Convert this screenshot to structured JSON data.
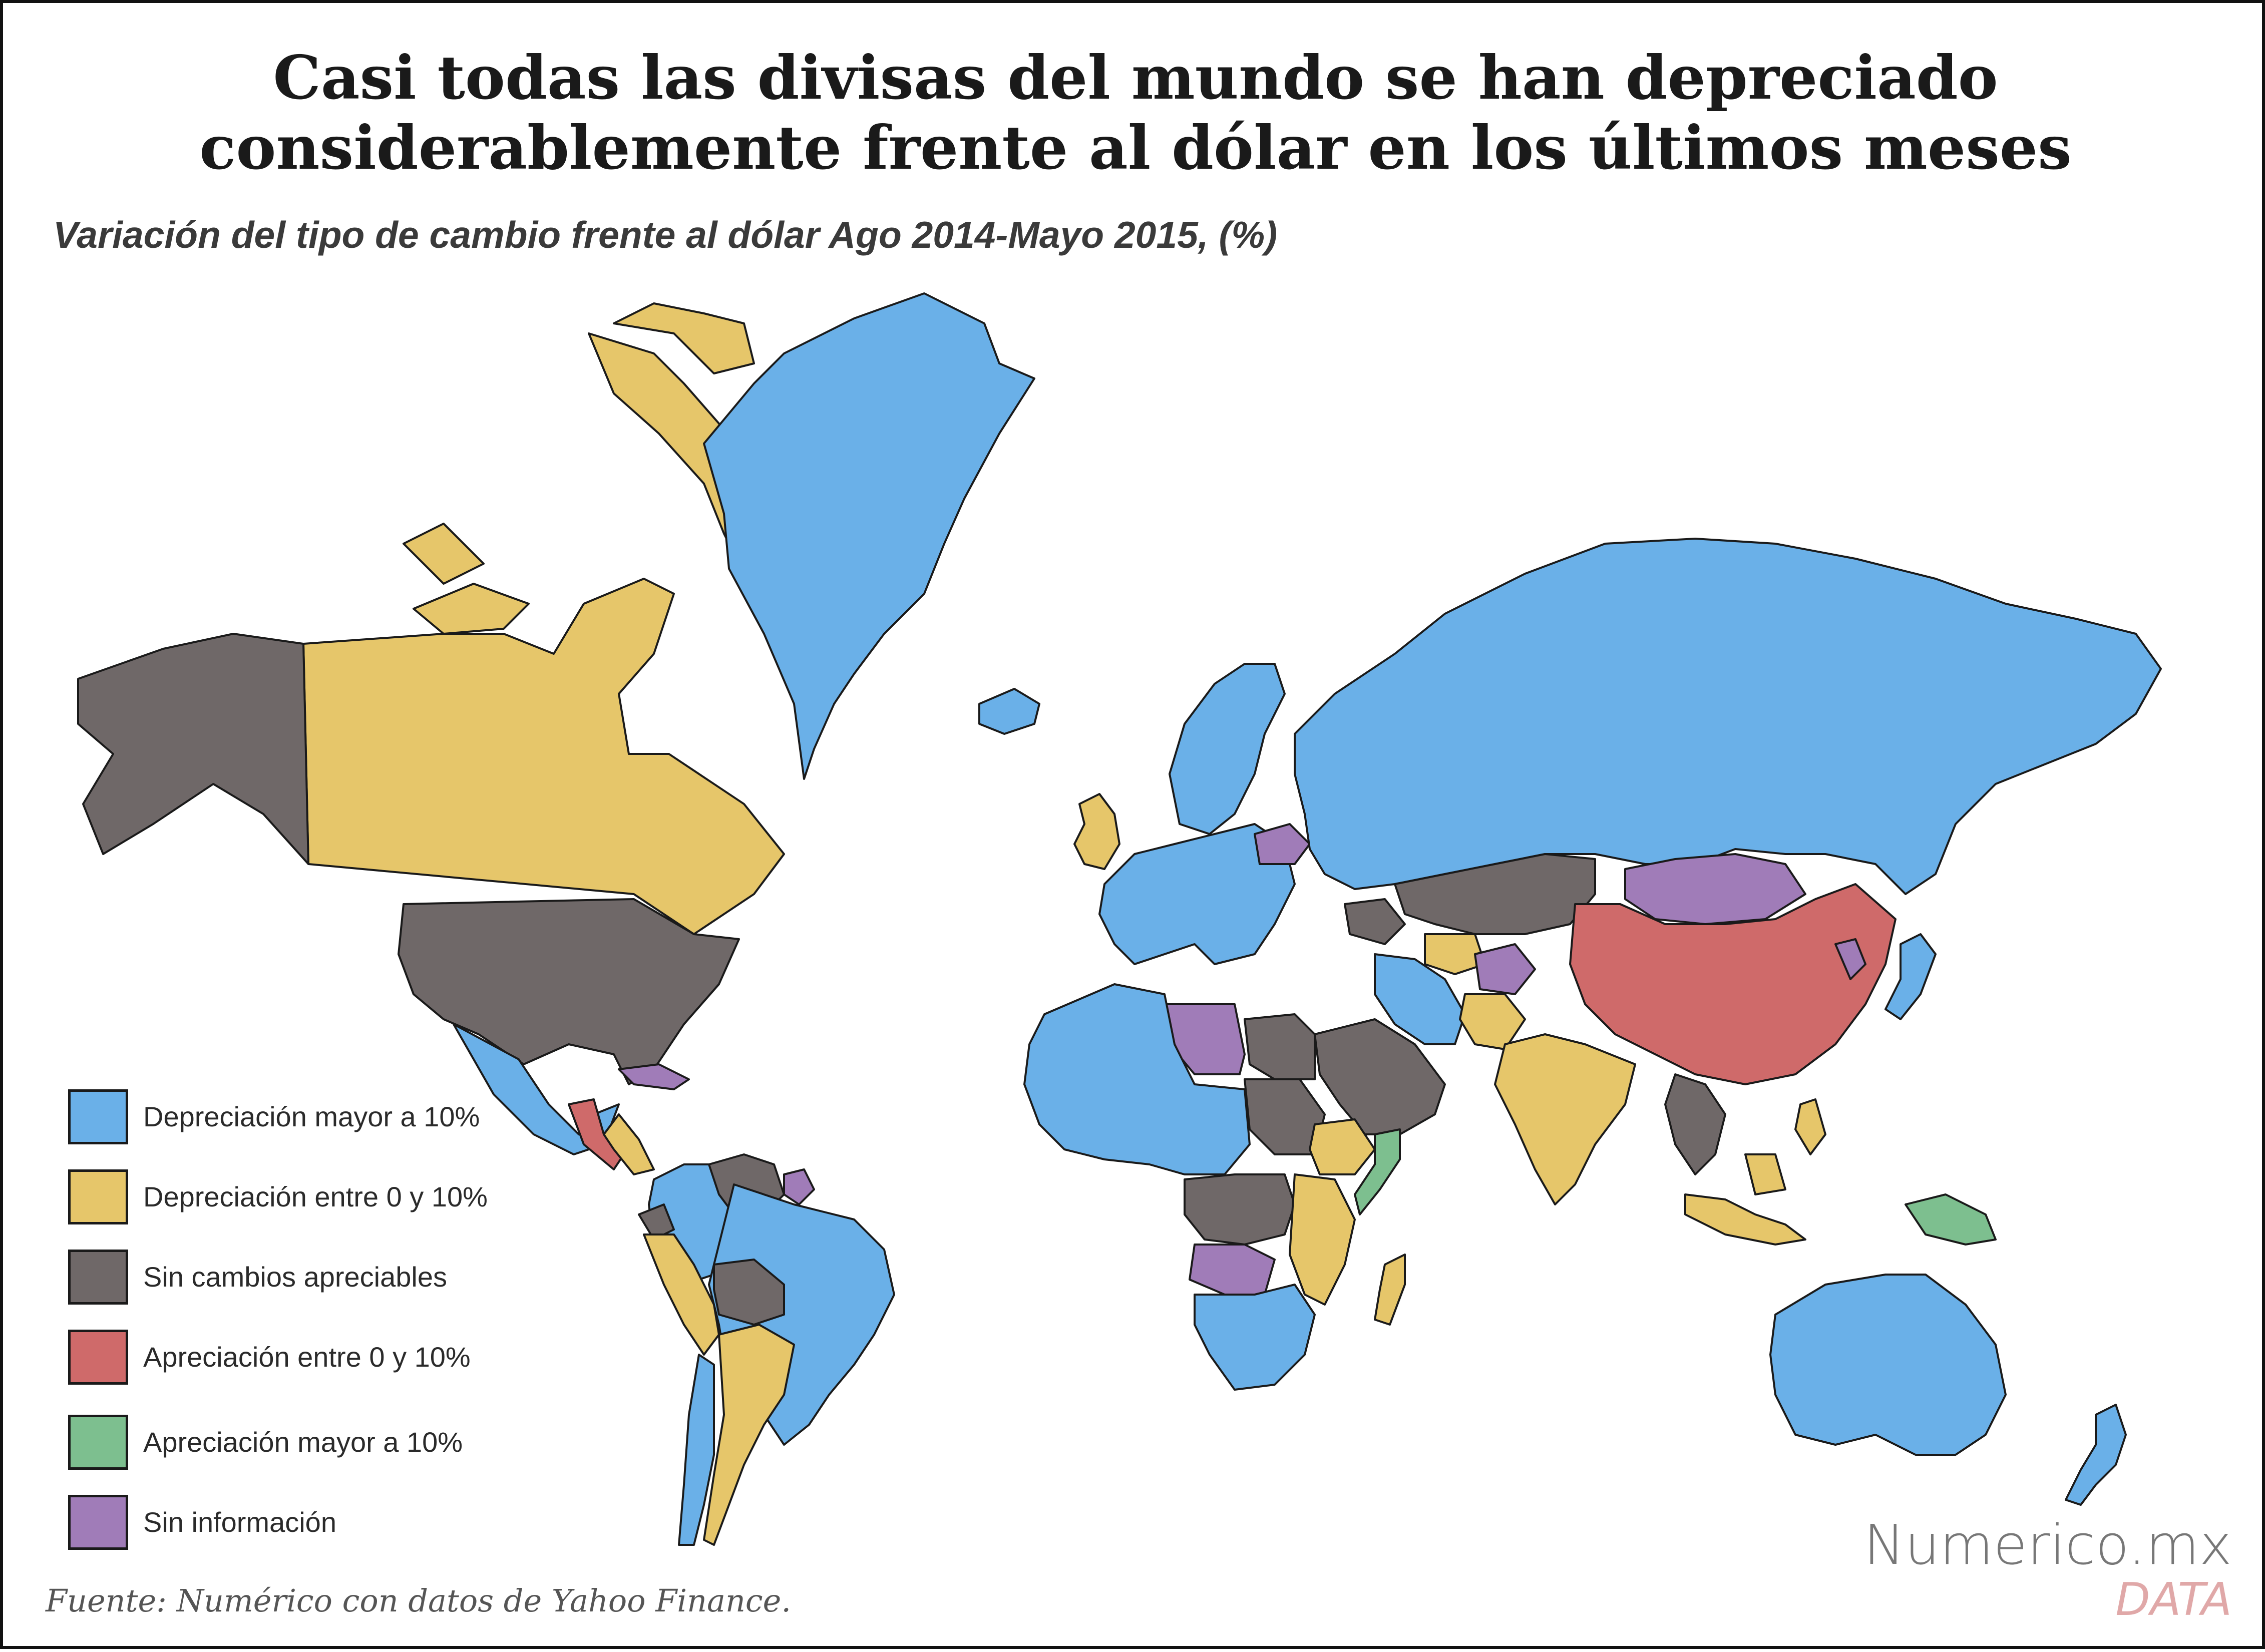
{
  "title": {
    "line1": "Casi todas las divisas del mundo se han depreciado",
    "line2": "considerablemente frente al dólar en los últimos meses"
  },
  "subtitle": "Variación del tipo de cambio frente al dólar Ago 2014-Mayo 2015, (%)",
  "legend": [
    {
      "key": "dep_high",
      "label": "Depreciación mayor a 10%",
      "color": "#6ab0e8"
    },
    {
      "key": "dep_low",
      "label": "Depreciación entre 0 y 10%",
      "color": "#e6c66a"
    },
    {
      "key": "no_change",
      "label": "Sin cambios apreciables",
      "color": "#6f6868"
    },
    {
      "key": "app_low",
      "label": "Apreciación entre 0 y 10%",
      "color": "#cf6a6a"
    },
    {
      "key": "app_high",
      "label": "Apreciación mayor a 10%",
      "color": "#7dbf8f"
    },
    {
      "key": "no_info",
      "label": "Sin información",
      "color": "#a07cb8"
    }
  ],
  "regions": [
    {
      "name": "Canada",
      "category": "dep_low"
    },
    {
      "name": "Canadian Arctic Archipelago",
      "category": "dep_low"
    },
    {
      "name": "Alaska",
      "category": "no_change"
    },
    {
      "name": "United States",
      "category": "no_change"
    },
    {
      "name": "Mexico",
      "category": "dep_high"
    },
    {
      "name": "Guatemala",
      "category": "app_low"
    },
    {
      "name": "Central America",
      "category": "dep_low"
    },
    {
      "name": "Cuba",
      "category": "no_info"
    },
    {
      "name": "Greenland",
      "category": "dep_high"
    },
    {
      "name": "Iceland",
      "category": "dep_high"
    },
    {
      "name": "Colombia",
      "category": "dep_high"
    },
    {
      "name": "Venezuela",
      "category": "no_change"
    },
    {
      "name": "Guyana",
      "category": "no_info"
    },
    {
      "name": "Ecuador",
      "category": "no_change"
    },
    {
      "name": "Peru",
      "category": "dep_low"
    },
    {
      "name": "Brazil",
      "category": "dep_high"
    },
    {
      "name": "Bolivia",
      "category": "no_change"
    },
    {
      "name": "Chile",
      "category": "dep_high"
    },
    {
      "name": "Argentina",
      "category": "dep_low"
    },
    {
      "name": "United Kingdom",
      "category": "dep_low"
    },
    {
      "name": "Europe",
      "category": "dep_high"
    },
    {
      "name": "Scandinavia",
      "category": "dep_high"
    },
    {
      "name": "Belarus",
      "category": "no_info"
    },
    {
      "name": "Russia",
      "category": "dep_high"
    },
    {
      "name": "Kazakhstan",
      "category": "no_change"
    },
    {
      "name": "Caucasus",
      "category": "no_change"
    },
    {
      "name": "Turkmenistan",
      "category": "dep_low"
    },
    {
      "name": "Iran",
      "category": "dep_high"
    },
    {
      "name": "Afghanistan",
      "category": "no_info"
    },
    {
      "name": "Pakistan",
      "category": "dep_low"
    },
    {
      "name": "Mongolia",
      "category": "no_info"
    },
    {
      "name": "China",
      "category": "app_low"
    },
    {
      "name": "Korea",
      "category": "no_info"
    },
    {
      "name": "Japan",
      "category": "dep_high"
    },
    {
      "name": "India",
      "category": "dep_low"
    },
    {
      "name": "Southeast Asia",
      "category": "no_change"
    },
    {
      "name": "Arabian Peninsula",
      "category": "no_change"
    },
    {
      "name": "Egypt",
      "category": "no_change"
    },
    {
      "name": "Sudan",
      "category": "no_change"
    },
    {
      "name": "Libya",
      "category": "no_info"
    },
    {
      "name": "West Africa",
      "category": "dep_high"
    },
    {
      "name": "Ethiopia",
      "category": "dep_low"
    },
    {
      "name": "Somalia",
      "category": "app_high"
    },
    {
      "name": "Central Africa",
      "category": "no_change"
    },
    {
      "name": "East Africa",
      "category": "dep_low"
    },
    {
      "name": "Angola",
      "category": "no_info"
    },
    {
      "name": "Southern Africa",
      "category": "dep_high"
    },
    {
      "name": "Madagascar",
      "category": "dep_low"
    },
    {
      "name": "Philippines",
      "category": "dep_low"
    },
    {
      "name": "Indonesia",
      "category": "dep_low"
    },
    {
      "name": "Papua New Guinea",
      "category": "app_high"
    },
    {
      "name": "Australia",
      "category": "dep_high"
    },
    {
      "name": "New Zealand",
      "category": "dep_high"
    }
  ],
  "source": "Fuente: Numérico con datos de Yahoo Finance.",
  "brand": {
    "name": "Numerico.mx",
    "sub": "DATA"
  }
}
